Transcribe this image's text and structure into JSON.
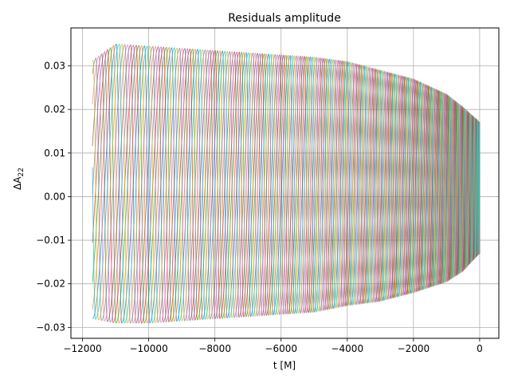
{
  "chart_data": {
    "type": "line",
    "title": "Residuals amplitude",
    "xlabel": "t [M]",
    "ylabel_base": "ΔA",
    "ylabel_sub": "22",
    "xlim": [
      -12350,
      580
    ],
    "ylim": [
      -0.0325,
      0.0387
    ],
    "xticks": [
      -12000,
      -10000,
      -8000,
      -6000,
      -4000,
      -2000,
      0
    ],
    "xtick_labels": [
      "−12000",
      "−10000",
      "−8000",
      "−6000",
      "−4000",
      "−2000",
      "0"
    ],
    "yticks": [
      -0.03,
      -0.02,
      -0.01,
      0.0,
      0.01,
      0.02,
      0.03
    ],
    "ytick_labels": [
      "−0.03",
      "−0.02",
      "−0.01",
      "0.00",
      "0.01",
      "0.02",
      "0.03"
    ],
    "grid": true,
    "legend": "none",
    "series_colors": [
      "#1f77b4",
      "#ff7f0e",
      "#2ca02c",
      "#d62728",
      "#9467bd",
      "#8c564b",
      "#e377c2",
      "#7f7f7f",
      "#bcbd22",
      "#17becf"
    ],
    "envelope": {
      "t": [
        -11700,
        -11000,
        -10000,
        -9000,
        -8000,
        -7000,
        -6000,
        -5000,
        -4000,
        -3000,
        -2000,
        -1000,
        -500,
        0
      ],
      "upper": [
        0.0312,
        0.035,
        0.0345,
        0.034,
        0.0335,
        0.033,
        0.0325,
        0.032,
        0.031,
        0.029,
        0.027,
        0.0235,
        0.0205,
        0.017
      ],
      "lower": [
        -0.028,
        -0.029,
        -0.029,
        -0.0285,
        -0.028,
        -0.0275,
        -0.027,
        -0.0265,
        -0.025,
        -0.024,
        -0.022,
        -0.0195,
        -0.017,
        -0.013
      ]
    },
    "cycle_count": 26,
    "series_count": 10
  }
}
